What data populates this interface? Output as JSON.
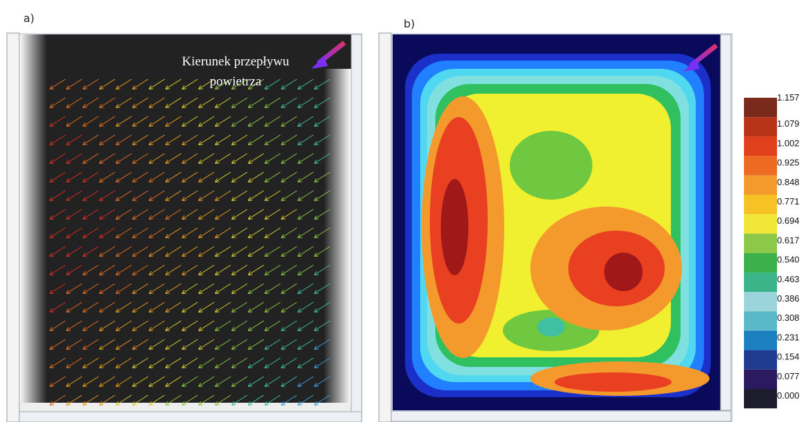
{
  "panel_a": {
    "label": "a)",
    "annotation": [
      "Kierunek przepływu",
      "powietrza"
    ]
  },
  "panel_b": {
    "label": "b)"
  },
  "colorbar": {
    "labels": [
      "1.157",
      "1.079",
      "1.002",
      "0.925",
      "0.848",
      "0.771",
      "0.694",
      "0.617",
      "0.540",
      "0.463",
      "0.386",
      "0.308",
      "0.231",
      "0.154",
      "0.077",
      "0.000"
    ],
    "colors": [
      "#7a2a1a",
      "#b83418",
      "#e0401c",
      "#ec6a22",
      "#f29a2c",
      "#f7c226",
      "#efe636",
      "#8cc84a",
      "#3cb04a",
      "#3cb48a",
      "#9cd4dc",
      "#5ab8c8",
      "#1c80c0",
      "#203c90",
      "#2c1a60",
      "#1c1c2c"
    ]
  }
}
